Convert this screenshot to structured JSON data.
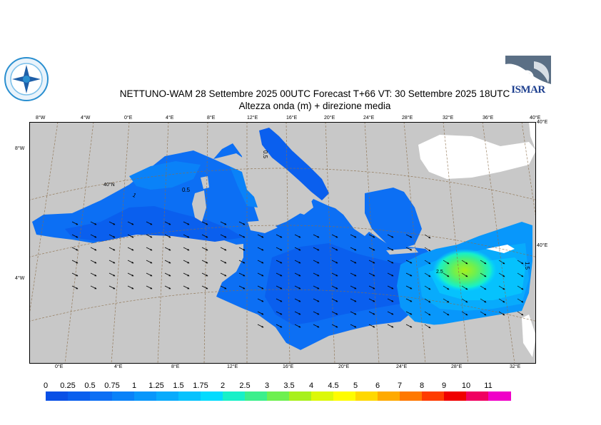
{
  "title_line1": "NETTUNO-WAM  28 Settembre 2025 00UTC Forecast T+66 VT: 30 Settembre 2025 18UTC",
  "title_line2": "Altezza onda (m) + direzione media",
  "ismar_logo_text": "ISMAR",
  "top_ticks": [
    "8°W",
    "4°W",
    "0°E",
    "4°E",
    "8°E",
    "12°E",
    "16°E",
    "20°E",
    "24°E",
    "28°E",
    "32°E",
    "36°E",
    "40°E"
  ],
  "bottom_ticks": [
    "0°E",
    "4°E",
    "8°E",
    "12°E",
    "16°E",
    "20°E",
    "24°E",
    "28°E",
    "32°E"
  ],
  "left_ticks": [
    "8°W",
    "4°W"
  ],
  "right_ticks": [
    "40°E",
    "40°E"
  ],
  "lat_label": "40°N",
  "contour_labels": [
    "0.5",
    "0.5",
    "1",
    "1.5",
    "2.5"
  ],
  "colorbar": {
    "labels": [
      "0",
      "0.25",
      "0.5",
      "0.75",
      "1",
      "1.25",
      "1.5",
      "1.75",
      "2",
      "2.5",
      "3",
      "3.5",
      "4",
      "4.5",
      "5",
      "6",
      "7",
      "8",
      "9",
      "10",
      "11"
    ],
    "colors": [
      "#0a50e6",
      "#0a5fee",
      "#0c6ff4",
      "#0a82f8",
      "#0897fb",
      "#08abfc",
      "#06c2fd",
      "#04dbfe",
      "#18f0c8",
      "#3cef8c",
      "#6ef050",
      "#a8f01c",
      "#dcf808",
      "#fffc00",
      "#ffd800",
      "#ffaa00",
      "#ff7800",
      "#ff3c00",
      "#f00000",
      "#f00060",
      "#f000c8"
    ]
  }
}
